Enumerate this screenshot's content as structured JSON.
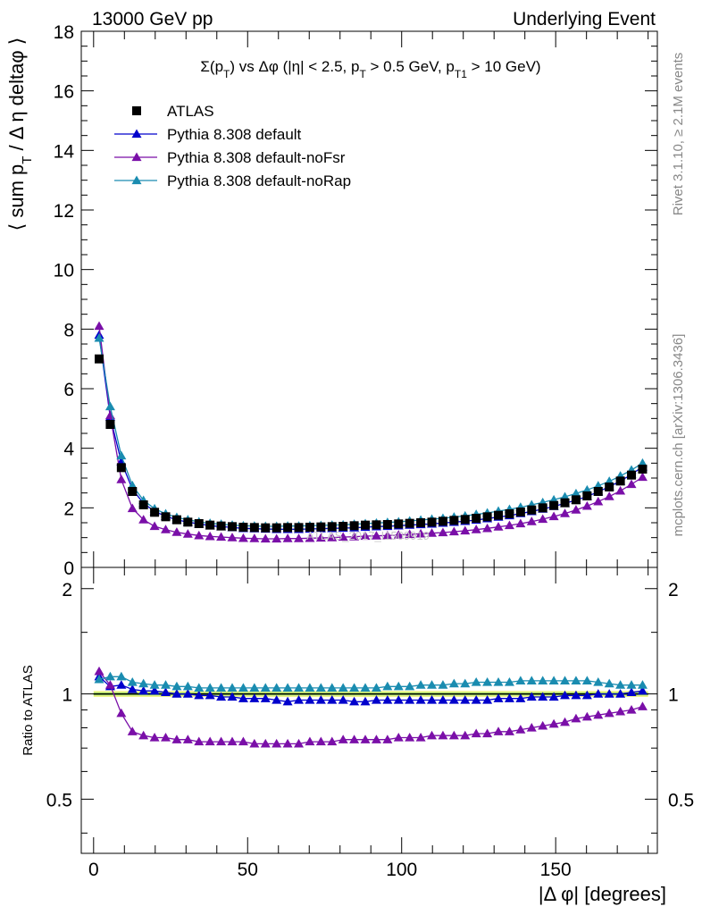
{
  "header": {
    "left": "13000 GeV pp",
    "right": "Underlying Event"
  },
  "side_labels": {
    "rivet": "Rivet 3.1.10, ≥ 2.1M events",
    "mcplots": "mcplots.cern.ch [arXiv:1306.3436]"
  },
  "watermark": "ATLAS_2017_I1509919",
  "colors": {
    "ATLAS": "#000000",
    "default": "#0000cc",
    "noFsr": "#7a0fa8",
    "noRap": "#1a8cb0",
    "band_outer": "#f0f58c",
    "band_inner": "#a6e86a"
  },
  "chart_data": [
    {
      "type": "scatter",
      "panel": "main",
      "title": "Σ(p_T) vs Δφ (|η| < 2.5, p_T > 0.5 GeV, p_T1 > 10 GeV)",
      "xlabel": "|Δ φ| [degrees]",
      "ylabel": "⟨ sum p_T / Δ η deltaφ ⟩",
      "xlim": [
        -4,
        183
      ],
      "ylim": [
        0,
        18
      ],
      "yticks": [
        0,
        2,
        4,
        6,
        8,
        10,
        12,
        14,
        16,
        18
      ],
      "xticks": [
        0,
        50,
        100,
        150
      ],
      "legend_position": "top-left",
      "x": [
        1.8,
        5.4,
        9.0,
        12.6,
        16.2,
        19.8,
        23.4,
        27.0,
        30.6,
        34.2,
        37.8,
        41.4,
        45.0,
        48.6,
        52.2,
        55.8,
        59.4,
        63.0,
        66.6,
        70.2,
        73.8,
        77.4,
        81.0,
        84.6,
        88.2,
        91.8,
        95.4,
        99.0,
        102.6,
        106.2,
        109.8,
        113.4,
        117.0,
        120.6,
        124.2,
        127.8,
        131.4,
        135.0,
        138.6,
        142.2,
        145.8,
        149.4,
        153.0,
        156.6,
        160.2,
        163.8,
        167.4,
        171.0,
        174.6,
        178.2
      ],
      "series": [
        {
          "name": "ATLAS",
          "marker": "square",
          "values": [
            7.0,
            4.8,
            3.35,
            2.55,
            2.1,
            1.85,
            1.7,
            1.6,
            1.52,
            1.47,
            1.42,
            1.39,
            1.37,
            1.35,
            1.34,
            1.33,
            1.33,
            1.34,
            1.34,
            1.35,
            1.36,
            1.37,
            1.38,
            1.4,
            1.42,
            1.43,
            1.44,
            1.46,
            1.48,
            1.5,
            1.52,
            1.55,
            1.58,
            1.61,
            1.65,
            1.7,
            1.75,
            1.8,
            1.86,
            1.93,
            2.0,
            2.08,
            2.17,
            2.27,
            2.4,
            2.55,
            2.7,
            2.9,
            3.1,
            3.3
          ]
        },
        {
          "name": "Pythia 8.308 default",
          "marker": "triangle",
          "values": [
            7.8,
            5.05,
            3.55,
            2.62,
            2.15,
            1.88,
            1.72,
            1.6,
            1.52,
            1.46,
            1.4,
            1.37,
            1.34,
            1.31,
            1.3,
            1.29,
            1.28,
            1.28,
            1.28,
            1.29,
            1.3,
            1.31,
            1.32,
            1.33,
            1.35,
            1.37,
            1.38,
            1.4,
            1.42,
            1.44,
            1.46,
            1.49,
            1.52,
            1.55,
            1.59,
            1.64,
            1.69,
            1.74,
            1.81,
            1.88,
            1.96,
            2.05,
            2.15,
            2.26,
            2.38,
            2.54,
            2.71,
            2.9,
            3.12,
            3.38
          ]
        },
        {
          "name": "Pythia 8.308 default-noFsr",
          "marker": "triangle",
          "values": [
            8.1,
            5.1,
            2.95,
            1.98,
            1.6,
            1.38,
            1.27,
            1.18,
            1.12,
            1.07,
            1.04,
            1.02,
            1.0,
            0.98,
            0.97,
            0.96,
            0.96,
            0.97,
            0.97,
            0.98,
            0.99,
            1.0,
            1.02,
            1.03,
            1.05,
            1.06,
            1.07,
            1.09,
            1.11,
            1.13,
            1.15,
            1.17,
            1.2,
            1.23,
            1.27,
            1.31,
            1.36,
            1.41,
            1.47,
            1.54,
            1.62,
            1.71,
            1.81,
            1.93,
            2.06,
            2.21,
            2.38,
            2.57,
            2.79,
            3.03
          ]
        },
        {
          "name": "Pythia 8.308 default-noRap",
          "marker": "triangle",
          "values": [
            7.7,
            5.4,
            3.75,
            2.75,
            2.25,
            1.97,
            1.8,
            1.68,
            1.6,
            1.53,
            1.48,
            1.45,
            1.42,
            1.4,
            1.39,
            1.38,
            1.38,
            1.39,
            1.39,
            1.4,
            1.41,
            1.42,
            1.43,
            1.45,
            1.47,
            1.49,
            1.51,
            1.53,
            1.56,
            1.59,
            1.62,
            1.65,
            1.69,
            1.73,
            1.78,
            1.83,
            1.89,
            1.95,
            2.02,
            2.1,
            2.18,
            2.27,
            2.37,
            2.48,
            2.6,
            2.74,
            2.89,
            3.07,
            3.27,
            3.5
          ]
        }
      ]
    },
    {
      "type": "scatter",
      "panel": "ratio",
      "xlabel": "|Δ φ| [degrees]",
      "ylabel": "Ratio to ATLAS",
      "xlim": [
        -4,
        183
      ],
      "ylim": [
        0.35,
        2.3
      ],
      "yscale": "log",
      "yticks": [
        0.5,
        1,
        2
      ],
      "xticks": [
        0,
        50,
        100,
        150
      ],
      "x": [
        1.8,
        5.4,
        9.0,
        12.6,
        16.2,
        19.8,
        23.4,
        27.0,
        30.6,
        34.2,
        37.8,
        41.4,
        45.0,
        48.6,
        52.2,
        55.8,
        59.4,
        63.0,
        66.6,
        70.2,
        73.8,
        77.4,
        81.0,
        84.6,
        88.2,
        91.8,
        95.4,
        99.0,
        102.6,
        106.2,
        109.8,
        113.4,
        117.0,
        120.6,
        124.2,
        127.8,
        131.4,
        135.0,
        138.6,
        142.2,
        145.8,
        149.4,
        153.0,
        156.6,
        160.2,
        163.8,
        167.4,
        171.0,
        174.6,
        178.2
      ],
      "series": [
        {
          "name": "Pythia 8.308 default",
          "values": [
            1.12,
            1.05,
            1.06,
            1.03,
            1.02,
            1.02,
            1.01,
            1.0,
            1.0,
            0.99,
            0.99,
            0.98,
            0.98,
            0.97,
            0.97,
            0.97,
            0.96,
            0.95,
            0.96,
            0.96,
            0.96,
            0.96,
            0.96,
            0.95,
            0.95,
            0.96,
            0.96,
            0.96,
            0.96,
            0.96,
            0.96,
            0.96,
            0.96,
            0.96,
            0.96,
            0.96,
            0.97,
            0.97,
            0.97,
            0.98,
            0.98,
            0.98,
            0.99,
            0.99,
            0.99,
            1.0,
            1.0,
            1.0,
            1.01,
            1.02
          ]
        },
        {
          "name": "Pythia 8.308 default-noFsr",
          "values": [
            1.16,
            1.06,
            0.88,
            0.78,
            0.76,
            0.75,
            0.75,
            0.74,
            0.74,
            0.73,
            0.73,
            0.73,
            0.73,
            0.73,
            0.72,
            0.72,
            0.72,
            0.72,
            0.72,
            0.73,
            0.73,
            0.73,
            0.74,
            0.74,
            0.74,
            0.74,
            0.74,
            0.75,
            0.75,
            0.75,
            0.76,
            0.76,
            0.76,
            0.76,
            0.77,
            0.77,
            0.78,
            0.78,
            0.79,
            0.8,
            0.81,
            0.82,
            0.83,
            0.85,
            0.86,
            0.87,
            0.88,
            0.89,
            0.9,
            0.92
          ]
        },
        {
          "name": "Pythia 8.308 default-noRap",
          "values": [
            1.1,
            1.12,
            1.12,
            1.08,
            1.07,
            1.06,
            1.06,
            1.05,
            1.05,
            1.04,
            1.04,
            1.04,
            1.04,
            1.04,
            1.04,
            1.04,
            1.04,
            1.04,
            1.04,
            1.04,
            1.04,
            1.04,
            1.04,
            1.04,
            1.04,
            1.04,
            1.05,
            1.05,
            1.05,
            1.06,
            1.06,
            1.06,
            1.07,
            1.07,
            1.08,
            1.08,
            1.08,
            1.08,
            1.09,
            1.09,
            1.09,
            1.09,
            1.09,
            1.09,
            1.09,
            1.08,
            1.07,
            1.06,
            1.06,
            1.06
          ]
        }
      ]
    }
  ]
}
